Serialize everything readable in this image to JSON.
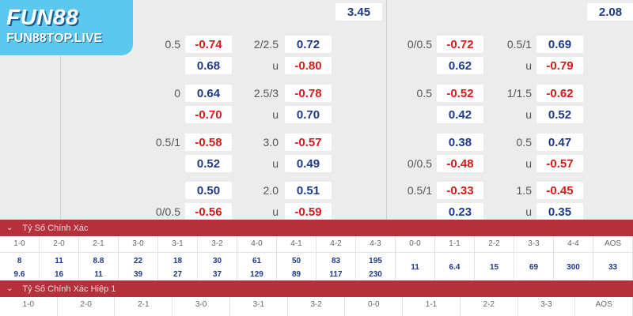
{
  "logo": {
    "brand": "FUN88",
    "site": "FUN88TOP.LIVE"
  },
  "top_odds": {
    "left": "3.45",
    "right": "2.08"
  },
  "left_block": {
    "rows": [
      {
        "h1": "0.5",
        "o1": "-0.74",
        "h2": "2/2.5",
        "o2": "0.72",
        "h1b": "",
        "o1b": "0.68",
        "h2b": "u",
        "o2b": "-0.80"
      },
      {
        "h1": "0",
        "o1": "0.64",
        "h2": "2.5/3",
        "o2": "-0.78",
        "h1b": "",
        "o1b": "-0.70",
        "h2b": "u",
        "o2b": "0.70"
      },
      {
        "h1": "0.5/1",
        "o1": "-0.58",
        "h2": "3.0",
        "o2": "-0.57",
        "h1b": "",
        "o1b": "0.52",
        "h2b": "u",
        "o2b": "0.49"
      },
      {
        "h1": "",
        "o1": "0.50",
        "h2": "2.0",
        "o2": "0.51",
        "h1b": "0/0.5",
        "o1b": "-0.56",
        "h2b": "u",
        "o2b": "-0.59"
      }
    ]
  },
  "right_block": {
    "rows": [
      {
        "h1": "0/0.5",
        "o1": "-0.72",
        "h2": "0.5/1",
        "o2": "0.69",
        "h1b": "",
        "o1b": "0.62",
        "h2b": "u",
        "o2b": "-0.79"
      },
      {
        "h1": "0.5",
        "o1": "-0.52",
        "h2": "1/1.5",
        "o2": "-0.62",
        "h1b": "",
        "o1b": "0.42",
        "h2b": "u",
        "o2b": "0.52"
      },
      {
        "h1": "",
        "o1": "0.38",
        "h2": "0.5",
        "o2": "0.47",
        "h1b": "0/0.5",
        "o1b": "-0.48",
        "h2b": "u",
        "o2b": "-0.57"
      },
      {
        "h1": "0.5/1",
        "o1": "-0.33",
        "h2": "1.5",
        "o2": "-0.45",
        "h1b": "",
        "o1b": "0.23",
        "h2b": "u",
        "o2b": "0.35"
      }
    ]
  },
  "correct_score": {
    "title": "Tỷ Số Chính Xác",
    "headers": [
      "1-0",
      "2-0",
      "2-1",
      "3-0",
      "3-1",
      "3-2",
      "4-0",
      "4-1",
      "4-2",
      "4-3",
      "0-0",
      "1-1",
      "2-2",
      "3-3",
      "4-4",
      "AOS"
    ],
    "values": [
      [
        "8",
        "9.6"
      ],
      [
        "11",
        "16"
      ],
      [
        "8.8",
        "11"
      ],
      [
        "22",
        "39"
      ],
      [
        "18",
        "27"
      ],
      [
        "30",
        "37"
      ],
      [
        "61",
        "129"
      ],
      [
        "50",
        "89"
      ],
      [
        "83",
        "117"
      ],
      [
        "195",
        "230"
      ],
      [
        "11"
      ],
      [
        "6.4"
      ],
      [
        "15"
      ],
      [
        "69"
      ],
      [
        "300"
      ],
      [
        "33"
      ]
    ]
  },
  "correct_score_half": {
    "title": "Tỷ Số Chính Xác Hiệp 1",
    "headers": [
      "1-0",
      "2-0",
      "2-1",
      "3-0",
      "3-1",
      "3-2",
      "0-0",
      "1-1",
      "2-2",
      "3-3",
      "AOS"
    ]
  }
}
